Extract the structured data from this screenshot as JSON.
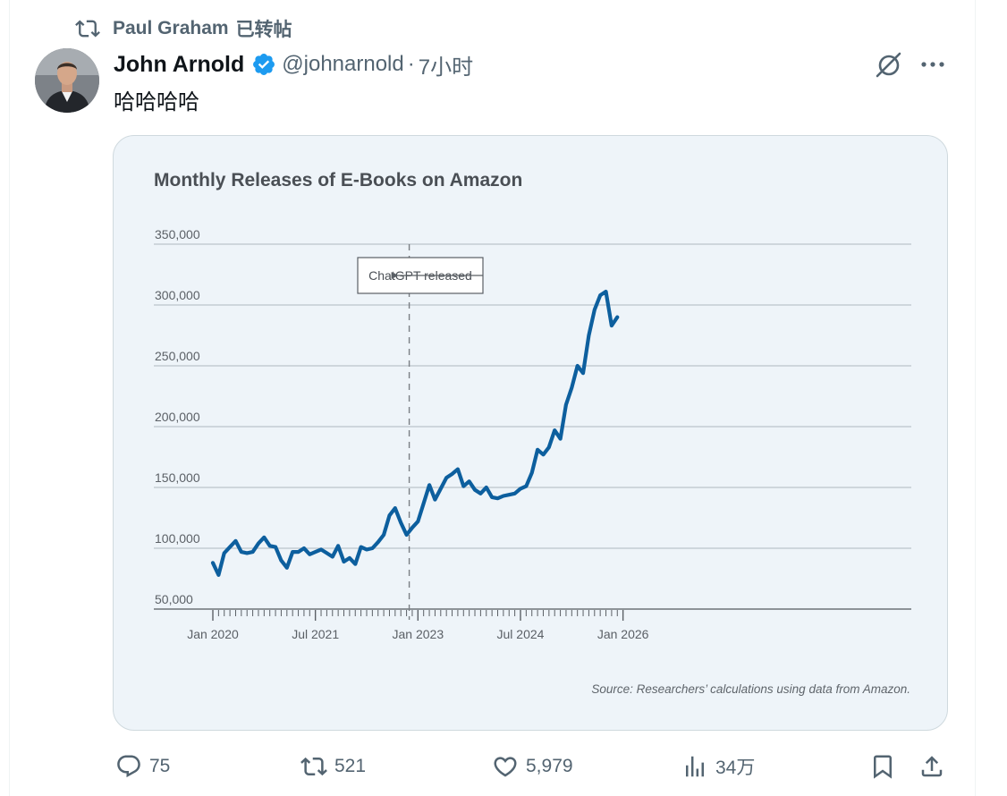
{
  "repost": {
    "reposter": "Paul Graham",
    "label": "已转帖"
  },
  "tweet": {
    "author_name": "John Arnold",
    "handle": "@johnarnold",
    "separator": "·",
    "time": "7小时",
    "text": "哈哈哈哈",
    "verified": true
  },
  "actions": {
    "replies": "75",
    "reposts": "521",
    "likes": "5,979",
    "views": "34万"
  },
  "colors": {
    "accent": "#1d9bf0",
    "line": "#0d5f9e",
    "muted": "#536471"
  },
  "chart_data": {
    "type": "line",
    "title": "Monthly Releases of E-Books on Amazon",
    "xlabel": "",
    "ylabel": "",
    "ylim": [
      50000,
      350000
    ],
    "yticks": [
      50000,
      100000,
      150000,
      200000,
      250000,
      300000,
      350000
    ],
    "ytick_labels": [
      "50,000",
      "100,000",
      "150,000",
      "200,000",
      "250,000",
      "300,000",
      "350,000"
    ],
    "xtick_labels": [
      "Jan 2020",
      "Jul 2021",
      "Jan 2023",
      "Jul 2024",
      "Jan 2026"
    ],
    "xtick_dates": [
      "2020-01",
      "2021-07",
      "2023-01",
      "2024-07",
      "2026-01"
    ],
    "annotation": {
      "text": "ChatGPT released",
      "date": "2022-11"
    },
    "source": "Source: Researchers’ calculations using data from Amazon.",
    "grid": true,
    "series": [
      {
        "x": [
          "2020-01",
          "2020-02",
          "2020-03",
          "2020-04",
          "2020-05",
          "2020-06",
          "2020-07",
          "2020-08",
          "2020-09",
          "2020-10",
          "2020-11",
          "2020-12",
          "2021-01",
          "2021-02",
          "2021-03",
          "2021-04",
          "2021-05",
          "2021-06",
          "2021-07",
          "2021-08",
          "2021-09",
          "2021-10",
          "2021-11",
          "2021-12",
          "2022-01",
          "2022-02",
          "2022-03",
          "2022-04",
          "2022-05",
          "2022-06",
          "2022-07",
          "2022-08",
          "2022-09",
          "2022-10",
          "2022-11",
          "2022-12",
          "2023-01",
          "2023-02",
          "2023-03",
          "2023-04",
          "2023-05",
          "2023-06",
          "2023-07",
          "2023-08",
          "2023-09",
          "2023-10",
          "2023-11",
          "2023-12",
          "2024-01",
          "2024-02",
          "2024-03",
          "2024-04",
          "2024-05",
          "2024-06",
          "2024-07",
          "2024-08",
          "2024-09",
          "2024-10",
          "2024-11",
          "2024-12",
          "2025-01",
          "2025-02",
          "2025-03",
          "2025-04",
          "2025-05",
          "2025-06",
          "2025-07",
          "2025-08",
          "2025-09",
          "2025-10",
          "2025-11",
          "2025-12"
        ],
        "y": [
          88000,
          78000,
          96000,
          101000,
          106000,
          97000,
          96000,
          97000,
          104000,
          109000,
          102000,
          101000,
          90000,
          84000,
          97000,
          97000,
          100000,
          95000,
          97000,
          99000,
          96000,
          93000,
          102000,
          89000,
          92000,
          87000,
          101000,
          99000,
          100000,
          105000,
          111000,
          127000,
          133000,
          121000,
          111000,
          117000,
          122000,
          137000,
          152000,
          140000,
          149000,
          158000,
          161000,
          165000,
          151000,
          155000,
          148000,
          145000,
          150000,
          142000,
          141000,
          143000,
          144000,
          145000,
          149000,
          151000,
          162000,
          181000,
          177000,
          183000,
          197000,
          190000,
          218000,
          232000,
          250000,
          244000,
          275000,
          296000,
          308000,
          311000,
          283000,
          290000
        ]
      }
    ]
  }
}
